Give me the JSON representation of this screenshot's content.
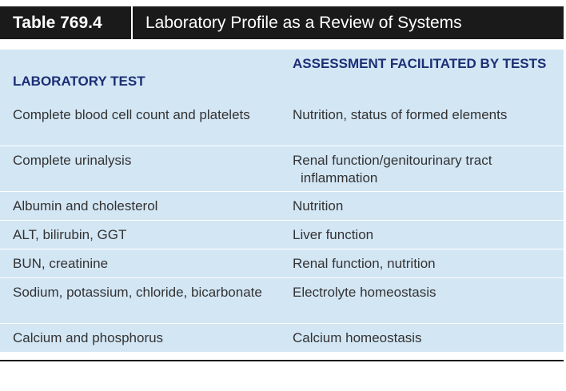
{
  "table": {
    "number": "Table 769.4",
    "title": "Laboratory Profile as a Review of Systems",
    "columns": {
      "test": "LABORATORY TEST",
      "assessment": "ASSESSMENT FACILITATED BY TESTS"
    },
    "rows": [
      {
        "test": "Complete blood cell count and platelets",
        "assessment": "Nutrition, status of formed elements"
      },
      {
        "test": "Complete urinalysis",
        "assessment": "Renal function/genitourinary tract inflammation"
      },
      {
        "test": "Albumin and cholesterol",
        "assessment": "Nutrition"
      },
      {
        "test": "ALT, bilirubin, GGT",
        "assessment": "Liver function"
      },
      {
        "test": "BUN, creatinine",
        "assessment": "Renal function, nutrition"
      },
      {
        "test": "Sodium, potassium, chloride, bicarbonate",
        "assessment": "Electrolyte homeostasis"
      },
      {
        "test": "Calcium and phosphorus",
        "assessment": "Calcium homeostasis"
      }
    ]
  },
  "colors": {
    "title_bar": "#1a1a1a",
    "header_fill": "#d3e6f4",
    "header_text": "#1b2f75",
    "row_shade": "#d3e6f4"
  }
}
